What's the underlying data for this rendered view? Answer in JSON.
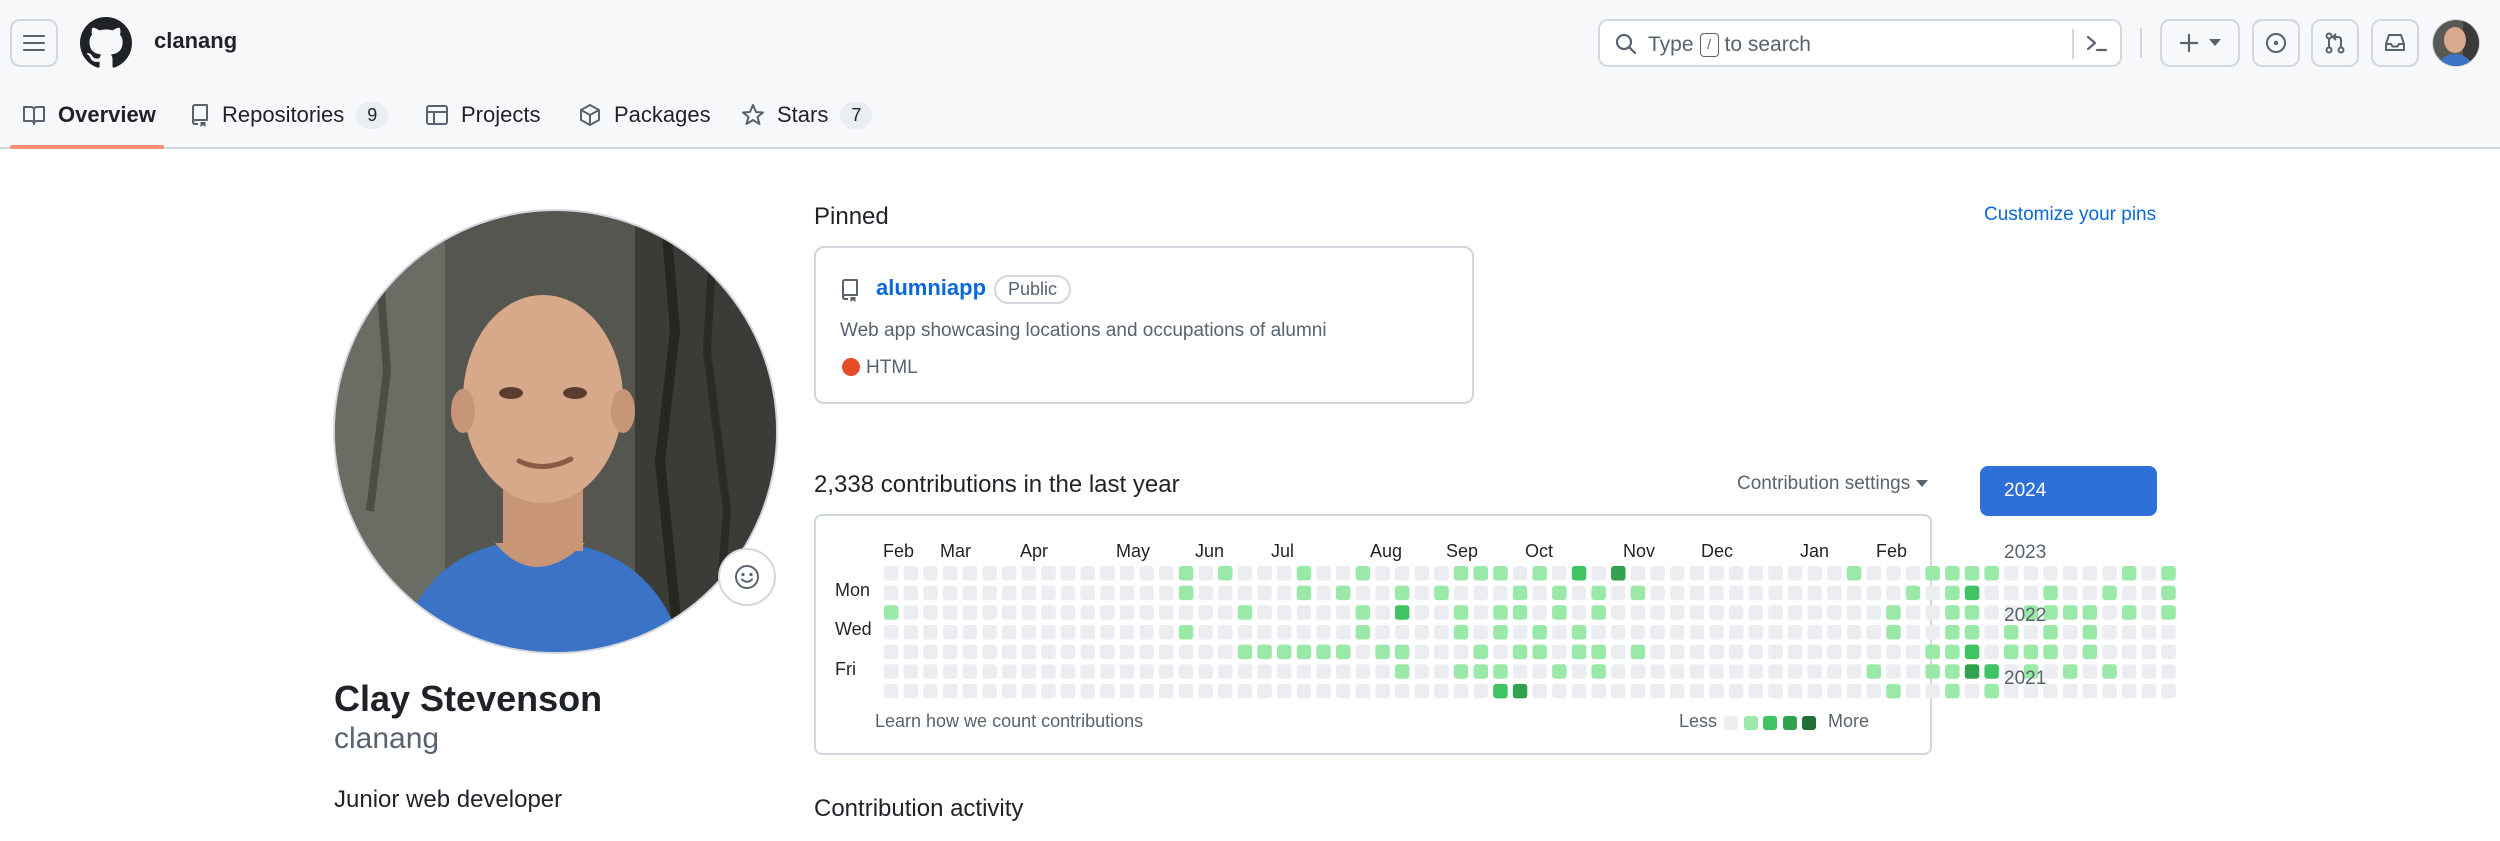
{
  "header": {
    "username": "clanang",
    "search_placeholder_pre": "Type",
    "search_key": "/",
    "search_placeholder_post": "to search"
  },
  "tabs": [
    {
      "label": "Overview",
      "count": ""
    },
    {
      "label": "Repositories",
      "count": "9"
    },
    {
      "label": "Projects",
      "count": ""
    },
    {
      "label": "Packages",
      "count": ""
    },
    {
      "label": "Stars",
      "count": "7"
    }
  ],
  "profile": {
    "full_name": "Clay Stevenson",
    "login": "clanang",
    "bio": "Junior web developer"
  },
  "pinned": {
    "heading": "Pinned",
    "customize": "Customize your pins",
    "repo_name": "alumniapp",
    "visibility": "Public",
    "description": "Web app showcasing locations and occupations of alumni",
    "language": "HTML",
    "language_color": "#e34c26"
  },
  "contributions": {
    "heading": "2,338 contributions in the last year",
    "settings": "Contribution settings",
    "months": [
      "Feb",
      "Mar",
      "Apr",
      "May",
      "Jun",
      "Jul",
      "Aug",
      "Sep",
      "Oct",
      "Nov",
      "Dec",
      "Jan",
      "Feb"
    ],
    "days": [
      "Mon",
      "Wed",
      "Fri"
    ],
    "learn": "Learn how we count contributions",
    "less": "Less",
    "more": "More",
    "colors": [
      "#ebedf0",
      "#9be9a8",
      "#40c463",
      "#30a14e",
      "#216e39"
    ],
    "grid_rows": [
      "000000000000000101000100100001110102030000000000010001111000000101",
      "000000000000000100000101001010001010101000000000000010120001001001",
      "100000000000000000100000102001011010100000000000000100110011110101",
      "000000000000000100000000100001010101000000000000000100110101010000",
      "000000000000000000111111011000101101101000000000000001120111010000",
      "000000000000000000000000001001110010100000000000001001132010101000",
      "000000000000000000000000000000023000000000000000000100101000000000"
    ],
    "activity_heading": "Contribution activity"
  },
  "years": [
    "2024",
    "2023",
    "2022",
    "2021"
  ]
}
